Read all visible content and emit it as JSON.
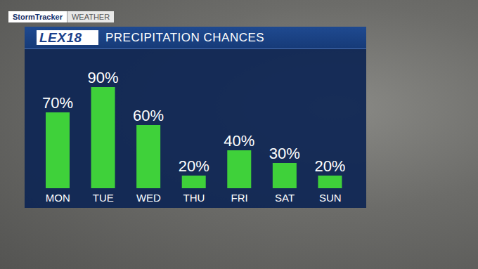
{
  "chart_data": {
    "type": "bar",
    "title": "PRECIPITATION CHANCES",
    "categories": [
      "MON",
      "TUE",
      "WED",
      "THU",
      "FRI",
      "SAT",
      "SUN"
    ],
    "values": [
      70,
      90,
      60,
      20,
      40,
      30,
      20
    ],
    "value_labels": [
      "70%",
      "90%",
      "60%",
      "20%",
      "40%",
      "30%",
      "20%"
    ],
    "color": "#3fd13a",
    "ylim": [
      10,
      100
    ],
    "data_labels": true,
    "tick_labels": "x",
    "grid": false
  },
  "branding": {
    "tag": "StormTracker",
    "section": "WEATHER",
    "logo": "LEX18"
  }
}
